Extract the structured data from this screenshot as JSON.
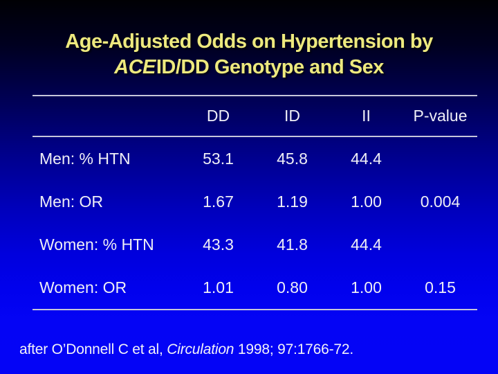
{
  "slide": {
    "title": {
      "line1": "Age-Adjusted Odds on Hypertension by",
      "line2_italic": "ACE",
      "line2_rest": "ID/DD Genotype and Sex"
    },
    "table": {
      "columns": [
        "DD",
        "ID",
        "II",
        "P-value"
      ],
      "rows": [
        {
          "label": "Men: % HTN",
          "values": [
            "53.1",
            "45.8",
            "44.4",
            ""
          ]
        },
        {
          "label": "Men: OR",
          "values": [
            "1.67",
            "1.19",
            "1.00",
            "0.004"
          ]
        },
        {
          "label": "Women: % HTN",
          "values": [
            "43.3",
            "41.8",
            "44.4",
            ""
          ]
        },
        {
          "label": "Women: OR",
          "values": [
            "1.01",
            "0.80",
            "1.00",
            "0.15"
          ]
        }
      ]
    },
    "footnote": {
      "pre": "after O’Donnell C et al, ",
      "italic": "Circulation",
      "post": " 1998; 97:1766-72."
    },
    "colors": {
      "title_text": "#ede97e",
      "body_text": "#efeff6",
      "rule": "#c6c6da",
      "background_top": "#000004",
      "background_bottom": "#0404f6"
    }
  }
}
